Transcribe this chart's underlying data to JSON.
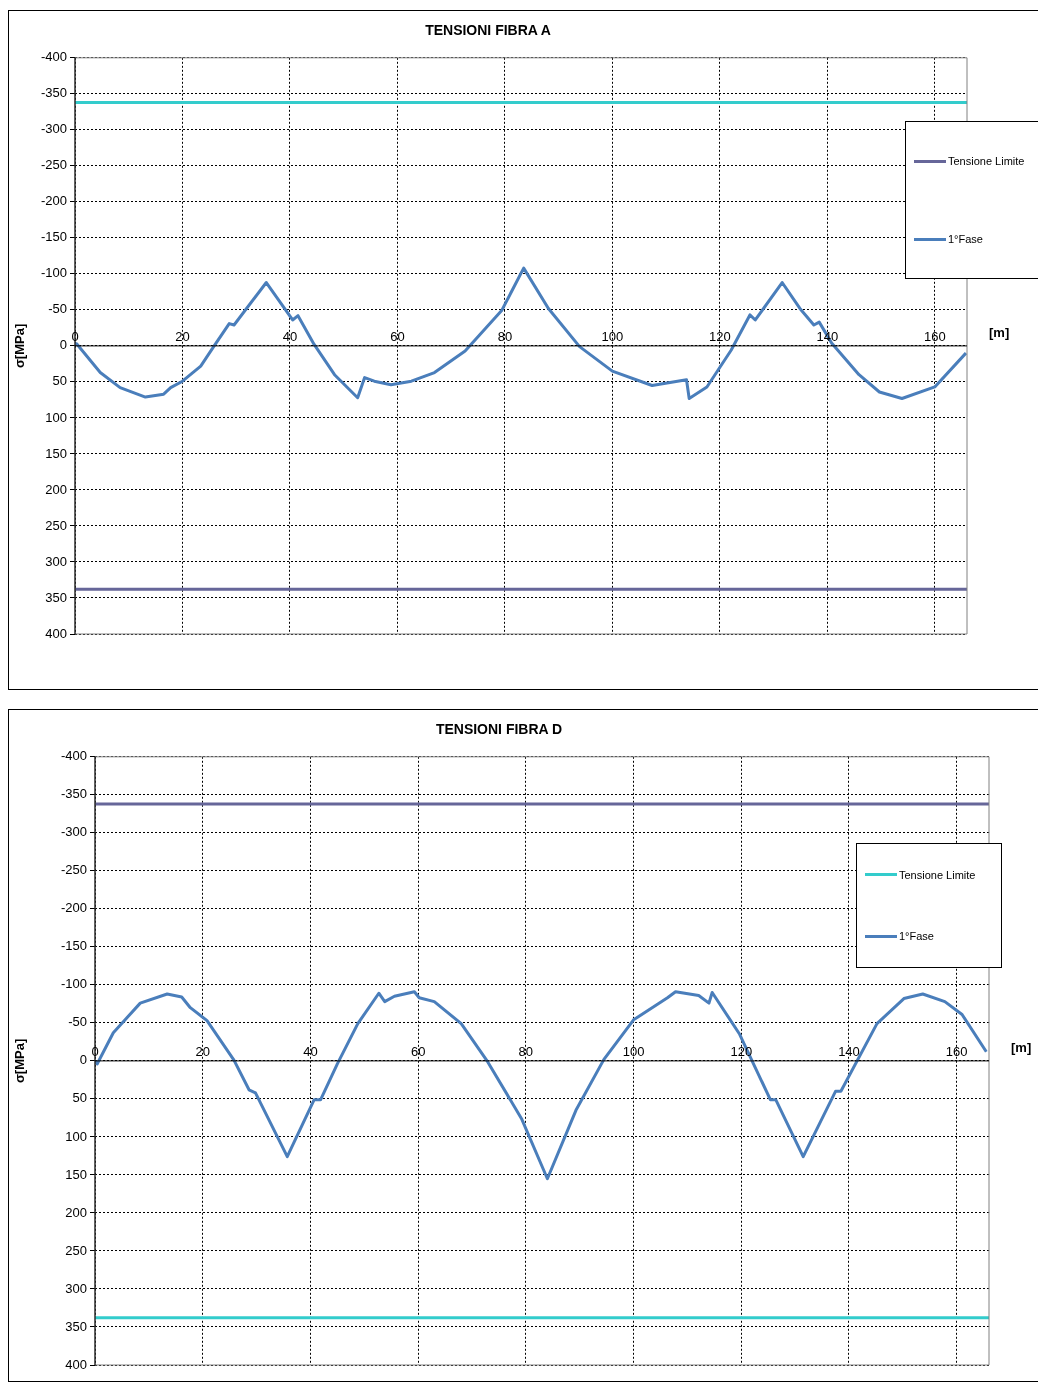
{
  "chart_data": [
    {
      "type": "line",
      "title": "TENSIONI FIBRA A",
      "xlabel": "[m]",
      "ylabel": "σ[MPa]",
      "xlim": [
        0,
        166
      ],
      "xticks": [
        0,
        20,
        40,
        60,
        80,
        100,
        120,
        140,
        160
      ],
      "ylim": [
        400,
        -400
      ],
      "yticks": [
        -400,
        -350,
        -300,
        -250,
        -200,
        -150,
        -100,
        -50,
        0,
        50,
        100,
        150,
        200,
        250,
        300,
        350,
        400
      ],
      "grid": true,
      "legend": "top right",
      "series": [
        {
          "name": "Tensione Limite",
          "color": "#666699",
          "x": [
            0,
            166
          ],
          "values": [
            338,
            338
          ]
        },
        {
          "color": "#33cccc",
          "x": [
            0,
            166
          ],
          "values": [
            -338,
            -338
          ]
        },
        {
          "name": "1°Fase",
          "color": "#4a7ebb",
          "x": [
            0,
            0.3,
            4.7,
            8.4,
            13.1,
            16.5,
            17.8,
            20,
            23.4,
            25.9,
            28.7,
            29.6,
            35.6,
            40.5,
            41.5,
            44.5,
            48.3,
            52.6,
            53.9,
            55.7,
            58.8,
            62.6,
            66.9,
            72.6,
            79.4,
            83.5,
            88.1,
            93.9,
            100,
            107.4,
            113.8,
            114.3,
            117.6,
            122.1,
            125.6,
            126.6,
            131.6,
            134.9,
            137.5,
            138.5,
            140.8,
            145.9,
            149.7,
            153.9,
            160,
            165.8
          ],
          "values": [
            -3,
            -3,
            37,
            58,
            71,
            67,
            58,
            49,
            28,
            0,
            -31,
            -29,
            -88,
            -36,
            -42,
            -2,
            40,
            72,
            44,
            49,
            54,
            49,
            37,
            7,
            -49,
            -108,
            -52,
            1,
            35,
            55,
            47,
            73,
            57,
            6,
            -43,
            -36,
            -88,
            -52,
            -29,
            -33,
            -4,
            40,
            64,
            73,
            57,
            10
          ]
        }
      ]
    },
    {
      "type": "line",
      "title": "TENSIONI FIBRA D",
      "xlabel": "[m]",
      "ylabel": "σ[MPa]",
      "xlim": [
        0,
        166
      ],
      "xticks": [
        0,
        20,
        40,
        60,
        80,
        100,
        120,
        140,
        160
      ],
      "ylim": [
        400,
        -400
      ],
      "yticks": [
        -400,
        -350,
        -300,
        -250,
        -200,
        -150,
        -100,
        -50,
        0,
        50,
        100,
        150,
        200,
        250,
        300,
        350,
        400
      ],
      "grid": true,
      "legend": "top right",
      "series": [
        {
          "name": "Tensione Limite",
          "color": "#33cccc",
          "x": [
            0,
            166
          ],
          "values": [
            338,
            338
          ]
        },
        {
          "color": "#666699",
          "x": [
            0,
            166
          ],
          "values": [
            -338,
            -338
          ]
        },
        {
          "name": "1°Fase",
          "color": "#4a7ebb",
          "x": [
            0,
            0.4,
            3.4,
            8.4,
            13.4,
            16.1,
            17.7,
            20.8,
            25.8,
            28.6,
            29.8,
            35.7,
            40.7,
            41.9,
            45,
            48.8,
            52.7,
            53.8,
            55.6,
            59.3,
            60.2,
            63,
            68,
            72.9,
            79.2,
            84,
            89.3,
            94.5,
            100,
            106.3,
            107.8,
            112.1,
            114,
            114.6,
            119.7,
            125.4,
            126.4,
            131.5,
            137.5,
            138.5,
            145.2,
            150.2,
            153.7,
            157.8,
            161,
            165.5
          ],
          "values": [
            0,
            4,
            -37,
            -76,
            -88,
            -84,
            -70,
            -53,
            -1,
            38,
            42,
            126,
            51,
            51,
            4,
            -49,
            -89,
            -78,
            -85,
            -91,
            -83,
            -78,
            -49,
            1,
            76,
            155,
            65,
            -2,
            -54,
            -83,
            -91,
            -86,
            -76,
            -90,
            -35,
            51,
            51,
            126,
            40,
            40,
            -49,
            -82,
            -88,
            -78,
            -61,
            -12
          ]
        }
      ]
    }
  ]
}
